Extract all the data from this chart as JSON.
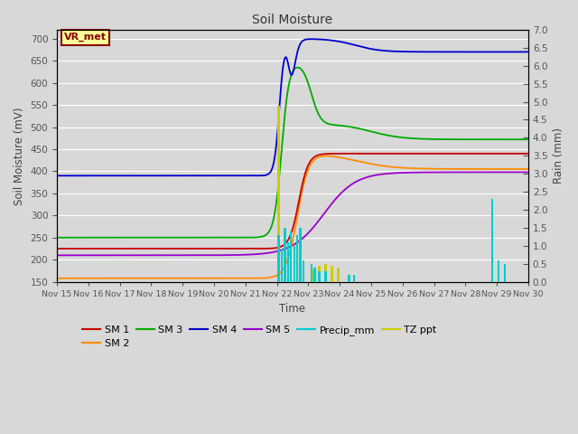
{
  "title": "Soil Moisture",
  "xlabel": "Time",
  "ylabel_left": "Soil Moisture (mV)",
  "ylabel_right": "Rain (mm)",
  "ylim_left": [
    150,
    720
  ],
  "ylim_right": [
    0.0,
    7.0
  ],
  "yticks_left": [
    150,
    200,
    250,
    300,
    350,
    400,
    450,
    500,
    550,
    600,
    650,
    700
  ],
  "yticks_right": [
    0.0,
    0.5,
    1.0,
    1.5,
    2.0,
    2.5,
    3.0,
    3.5,
    4.0,
    4.5,
    5.0,
    5.5,
    6.0,
    6.5,
    7.0
  ],
  "xlim": [
    0,
    15
  ],
  "xtick_labels": [
    "Nov 15",
    "Nov 16",
    "Nov 17",
    "Nov 18",
    "Nov 19",
    "Nov 20",
    "Nov 21",
    "Nov 22",
    "Nov 23",
    "Nov 24",
    "Nov 25",
    "Nov 26",
    "Nov 27",
    "Nov 28",
    "Nov 29",
    "Nov 30"
  ],
  "background_color": "#d8d8d8",
  "plot_bg_color": "#d8d8d8",
  "grid_color": "#ffffff",
  "vr_met_label": "VR_met",
  "vr_met_bg": "#ffff99",
  "vr_met_border": "#8b0000",
  "colors": {
    "SM1": "#cc0000",
    "SM2": "#ff8c00",
    "SM3": "#00aa00",
    "SM4": "#0000cc",
    "SM5": "#9900cc",
    "Precip": "#00cccc",
    "TZppt": "#cccc00"
  },
  "precip_times": [
    7.05,
    7.15,
    7.25,
    7.35,
    7.45,
    7.55,
    7.65,
    7.75,
    7.85,
    8.1,
    8.2,
    8.35,
    8.55,
    9.3,
    9.45,
    13.85,
    14.05,
    14.25
  ],
  "precip_vals": [
    1.3,
    0.9,
    1.5,
    1.1,
    1.4,
    1.0,
    1.3,
    1.5,
    0.6,
    0.5,
    0.4,
    0.3,
    0.3,
    0.2,
    0.2,
    2.3,
    0.6,
    0.5
  ],
  "tz_times": [
    7.05,
    7.25,
    7.45,
    8.15,
    8.35,
    8.55,
    8.75,
    8.95,
    13.85
  ],
  "tz_vals": [
    4.9,
    0.6,
    0.4,
    0.35,
    0.45,
    0.5,
    0.45,
    0.4,
    0.25
  ]
}
